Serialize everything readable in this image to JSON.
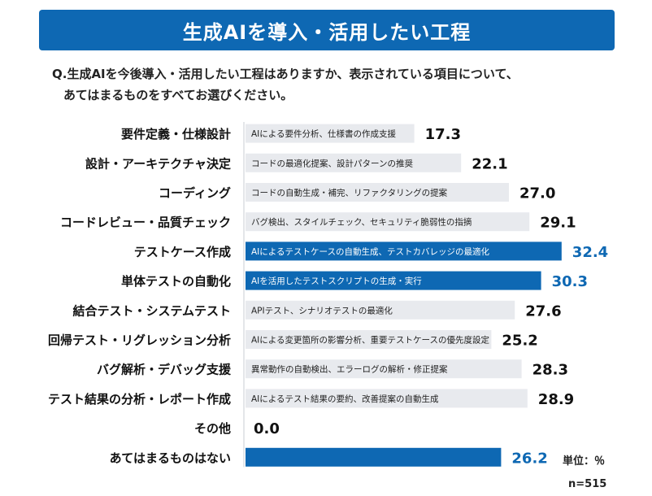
{
  "header": {
    "title": "生成AIを導入・活用したい工程"
  },
  "question": {
    "line1": "Q.生成AIを今後導入・活用したい工程はありますか、表示されている項目について、",
    "line2": "あてはまるものをすべてお選びください。"
  },
  "footer": {
    "unit": "単位：％",
    "n": "n=515"
  },
  "colors": {
    "banner": "#0e68b3",
    "highlight": "#0e68b3",
    "normal": "#e8eaee",
    "highlight_value": "#0e68b3",
    "normal_value": "#111111"
  },
  "chart_data": {
    "type": "bar",
    "orientation": "horizontal",
    "title": "生成AIを導入・活用したい工程",
    "categories": [
      "要件定義・仕様設計",
      "設計・アーキテクチャ決定",
      "コーディング",
      "コードレビュー・品質チェック",
      "テストケース作成",
      "単体テストの自動化",
      "結合テスト・システムテスト",
      "回帰テスト・リグレッション分析",
      "バグ解析・デバッグ支援",
      "テスト結果の分析・レポート作成",
      "その他",
      "あてはまるものはない"
    ],
    "bar_texts": [
      "AIによる要件分析、仕様書の作成支援",
      "コードの最適化提案、設計パターンの推奨",
      "コードの自動生成・補完、リファクタリングの提案",
      "バグ検出、スタイルチェック、セキュリティ脆弱性の指摘",
      "AIによるテストケースの自動生成、テストカバレッジの最適化",
      "AIを活用したテストスクリプトの生成・実行",
      "APIテスト、シナリオテストの最適化",
      "AIによる変更箇所の影響分析、重要テストケースの優先度設定",
      "異常動作の自動検出、エラーログの解析・修正提案",
      "AIによるテスト結果の要約、改善提案の自動生成",
      "",
      ""
    ],
    "values": [
      17.3,
      22.1,
      27.0,
      29.1,
      32.4,
      30.3,
      27.6,
      25.2,
      28.3,
      28.9,
      0.0,
      26.2
    ],
    "value_labels": [
      "17.3",
      "22.1",
      "27.0",
      "29.1",
      "32.4",
      "30.3",
      "27.6",
      "25.2",
      "28.3",
      "28.9",
      "0.0",
      "26.2"
    ],
    "highlighted": [
      false,
      false,
      false,
      false,
      true,
      true,
      false,
      false,
      false,
      false,
      false,
      true
    ],
    "unit": "%",
    "xlim": [
      0,
      40
    ]
  }
}
